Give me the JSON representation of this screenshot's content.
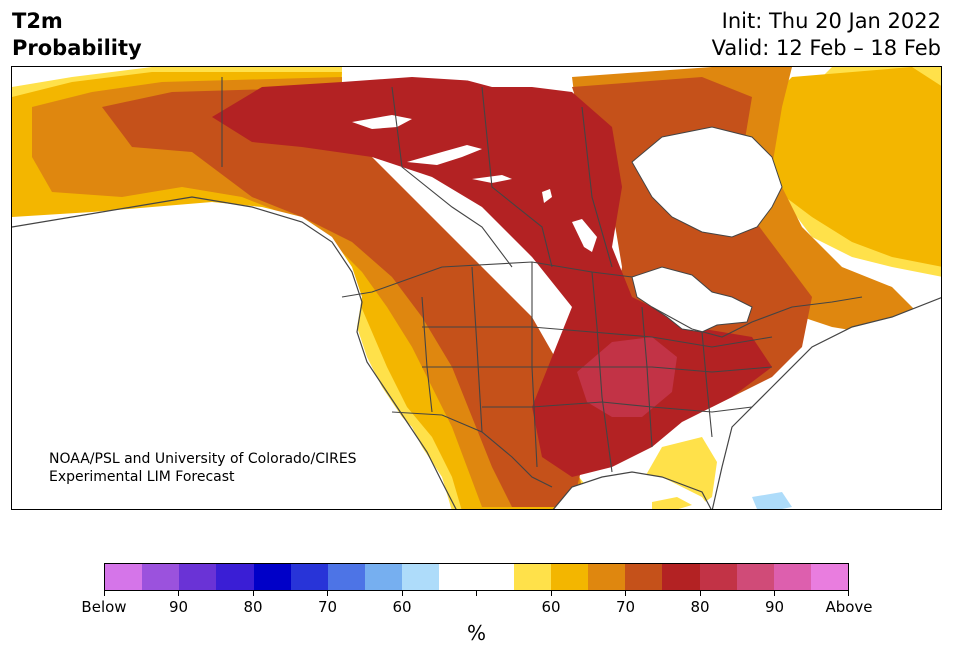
{
  "header": {
    "variable": "T2m",
    "quantity": "Probability",
    "init": "Init: Thu 20 Jan 2022",
    "valid": "Valid: 12 Feb – 18 Feb"
  },
  "map": {
    "credit_line1": "NOAA/PSL and University of Colorado/CIRES",
    "credit_line2": "Experimental LIM Forecast"
  },
  "colorbar": {
    "unit": "%",
    "labels": [
      "Below",
      "90",
      "80",
      "70",
      "60",
      "60",
      "70",
      "80",
      "90",
      "Above"
    ],
    "colors": [
      "#d575e9",
      "#9b52dd",
      "#6a33d6",
      "#3a1ed5",
      "#0000c8",
      "#2834d8",
      "#4d74e6",
      "#76aff0",
      "#aedcfa",
      "#ffffff",
      "#ffffff",
      "#ffe14a",
      "#f3b600",
      "#df870f",
      "#c5511a",
      "#b32223",
      "#c23346",
      "#d04b78",
      "#dd5fae",
      "#e97ddf"
    ]
  },
  "palette": {
    "ocean": "#ffffff",
    "land_neutral": "#ffffff",
    "p60_above": "#ffe14a",
    "p65_above": "#f3b600",
    "p70_above": "#df870f",
    "p75_above": "#c5511a",
    "p80_above": "#b32223",
    "p85_above": "#c23346",
    "p60_below": "#aedcfa",
    "borders": "#444444"
  }
}
